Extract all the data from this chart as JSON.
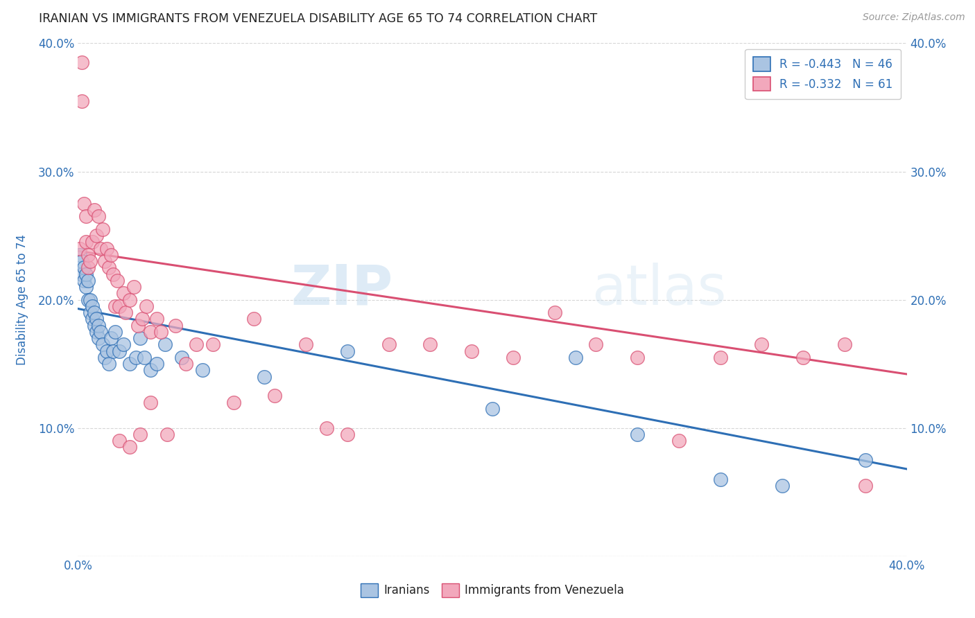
{
  "title": "IRANIAN VS IMMIGRANTS FROM VENEZUELA DISABILITY AGE 65 TO 74 CORRELATION CHART",
  "source": "Source: ZipAtlas.com",
  "ylabel": "Disability Age 65 to 74",
  "xlim": [
    0.0,
    0.4
  ],
  "ylim": [
    0.0,
    0.4
  ],
  "legend_r1": "R = -0.443",
  "legend_n1": "N = 46",
  "legend_r2": "R = -0.332",
  "legend_n2": "N = 61",
  "color_iranian": "#aac4e2",
  "color_venezuela": "#f2a8bc",
  "color_line_iranian": "#2e6fb5",
  "color_line_venezuela": "#d94f72",
  "watermark_zip": "ZIP",
  "watermark_atlas": "atlas",
  "blue_line_y0": 0.193,
  "blue_line_y1": 0.068,
  "pink_line_y0": 0.238,
  "pink_line_y1": 0.142,
  "iranians_x": [
    0.001,
    0.002,
    0.002,
    0.003,
    0.003,
    0.004,
    0.004,
    0.005,
    0.005,
    0.006,
    0.006,
    0.007,
    0.007,
    0.008,
    0.008,
    0.009,
    0.009,
    0.01,
    0.01,
    0.011,
    0.012,
    0.013,
    0.014,
    0.015,
    0.016,
    0.017,
    0.018,
    0.02,
    0.022,
    0.025,
    0.028,
    0.03,
    0.032,
    0.035,
    0.038,
    0.042,
    0.05,
    0.06,
    0.09,
    0.13,
    0.2,
    0.24,
    0.27,
    0.31,
    0.34,
    0.38
  ],
  "iranians_y": [
    0.235,
    0.22,
    0.23,
    0.215,
    0.225,
    0.21,
    0.22,
    0.2,
    0.215,
    0.19,
    0.2,
    0.185,
    0.195,
    0.18,
    0.19,
    0.175,
    0.185,
    0.17,
    0.18,
    0.175,
    0.165,
    0.155,
    0.16,
    0.15,
    0.17,
    0.16,
    0.175,
    0.16,
    0.165,
    0.15,
    0.155,
    0.17,
    0.155,
    0.145,
    0.15,
    0.165,
    0.155,
    0.145,
    0.14,
    0.16,
    0.115,
    0.155,
    0.095,
    0.06,
    0.055,
    0.075
  ],
  "venezuela_x": [
    0.001,
    0.002,
    0.002,
    0.003,
    0.004,
    0.004,
    0.005,
    0.005,
    0.006,
    0.007,
    0.008,
    0.009,
    0.01,
    0.011,
    0.012,
    0.013,
    0.014,
    0.015,
    0.016,
    0.017,
    0.018,
    0.019,
    0.02,
    0.022,
    0.023,
    0.025,
    0.027,
    0.029,
    0.031,
    0.033,
    0.035,
    0.038,
    0.04,
    0.043,
    0.047,
    0.052,
    0.057,
    0.065,
    0.075,
    0.085,
    0.095,
    0.11,
    0.13,
    0.15,
    0.17,
    0.19,
    0.21,
    0.23,
    0.25,
    0.27,
    0.29,
    0.31,
    0.33,
    0.35,
    0.37,
    0.02,
    0.025,
    0.03,
    0.035,
    0.38,
    0.12
  ],
  "venezuela_y": [
    0.24,
    0.385,
    0.355,
    0.275,
    0.265,
    0.245,
    0.225,
    0.235,
    0.23,
    0.245,
    0.27,
    0.25,
    0.265,
    0.24,
    0.255,
    0.23,
    0.24,
    0.225,
    0.235,
    0.22,
    0.195,
    0.215,
    0.195,
    0.205,
    0.19,
    0.2,
    0.21,
    0.18,
    0.185,
    0.195,
    0.175,
    0.185,
    0.175,
    0.095,
    0.18,
    0.15,
    0.165,
    0.165,
    0.12,
    0.185,
    0.125,
    0.165,
    0.095,
    0.165,
    0.165,
    0.16,
    0.155,
    0.19,
    0.165,
    0.155,
    0.09,
    0.155,
    0.165,
    0.155,
    0.165,
    0.09,
    0.085,
    0.095,
    0.12,
    0.055,
    0.1
  ]
}
